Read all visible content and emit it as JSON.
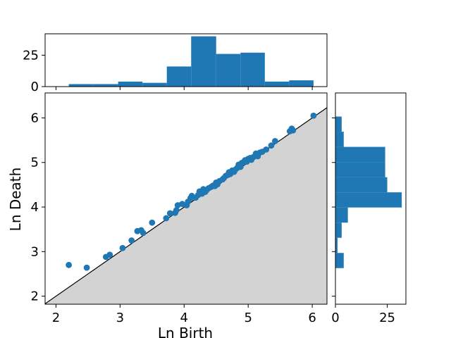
{
  "chart_data": {
    "type": "scatter",
    "title": "",
    "xlabel": "Ln Birth",
    "ylabel": "Ln Death",
    "xlim": [
      1.83,
      6.23
    ],
    "ylim": [
      1.82,
      6.56
    ],
    "xticks": [
      "2",
      "3",
      "4",
      "5",
      "6"
    ],
    "yticks": [
      "2",
      "3",
      "4",
      "5",
      "6"
    ],
    "grid": false,
    "legend": "none",
    "diagonal_line": true,
    "below_diagonal_fill": "#d3d3d3",
    "marker_color": "#1f77b4",
    "points": [
      [
        2.2,
        2.7
      ],
      [
        2.48,
        2.64
      ],
      [
        2.78,
        2.88
      ],
      [
        2.84,
        2.93
      ],
      [
        3.04,
        3.08
      ],
      [
        3.18,
        3.25
      ],
      [
        3.27,
        3.46
      ],
      [
        3.33,
        3.48
      ],
      [
        3.36,
        3.42
      ],
      [
        3.5,
        3.65
      ],
      [
        3.72,
        3.75
      ],
      [
        3.78,
        3.86
      ],
      [
        3.86,
        3.87
      ],
      [
        3.88,
        3.93
      ],
      [
        3.9,
        4.04
      ],
      [
        3.97,
        4.07
      ],
      [
        4.04,
        4.04
      ],
      [
        4.06,
        4.12
      ],
      [
        4.1,
        4.2
      ],
      [
        4.12,
        4.25
      ],
      [
        4.18,
        4.21
      ],
      [
        4.22,
        4.27
      ],
      [
        4.24,
        4.35
      ],
      [
        4.28,
        4.3
      ],
      [
        4.3,
        4.4
      ],
      [
        4.33,
        4.34
      ],
      [
        4.35,
        4.38
      ],
      [
        4.38,
        4.42
      ],
      [
        4.42,
        4.45
      ],
      [
        4.45,
        4.48
      ],
      [
        4.48,
        4.47
      ],
      [
        4.5,
        4.55
      ],
      [
        4.52,
        4.51
      ],
      [
        4.55,
        4.58
      ],
      [
        4.6,
        4.62
      ],
      [
        4.62,
        4.65
      ],
      [
        4.65,
        4.7
      ],
      [
        4.68,
        4.72
      ],
      [
        4.7,
        4.78
      ],
      [
        4.72,
        4.74
      ],
      [
        4.75,
        4.82
      ],
      [
        4.78,
        4.79
      ],
      [
        4.8,
        4.84
      ],
      [
        4.83,
        4.88
      ],
      [
        4.85,
        4.95
      ],
      [
        4.88,
        4.9
      ],
      [
        4.9,
        4.99
      ],
      [
        4.92,
        5.0
      ],
      [
        4.95,
        5.05
      ],
      [
        4.98,
        5.02
      ],
      [
        5.0,
        5.08
      ],
      [
        5.03,
        5.1
      ],
      [
        5.05,
        5.06
      ],
      [
        5.08,
        5.12
      ],
      [
        5.12,
        5.2
      ],
      [
        5.15,
        5.14
      ],
      [
        5.18,
        5.22
      ],
      [
        5.22,
        5.24
      ],
      [
        5.28,
        5.29
      ],
      [
        5.36,
        5.38
      ],
      [
        5.42,
        5.48
      ],
      [
        5.65,
        5.7
      ],
      [
        5.68,
        5.76
      ],
      [
        5.7,
        5.72
      ],
      [
        6.02,
        6.05
      ]
    ],
    "top_histogram": {
      "ylim": [
        0,
        42
      ],
      "yticks": [
        "0",
        "25"
      ],
      "bins": [
        {
          "range": [
            2.2,
            2.58
          ],
          "count": 2
        },
        {
          "range": [
            2.58,
            2.97
          ],
          "count": 2
        },
        {
          "range": [
            2.97,
            3.35
          ],
          "count": 4
        },
        {
          "range": [
            3.35,
            3.73
          ],
          "count": 3
        },
        {
          "range": [
            3.73,
            4.11
          ],
          "count": 16
        },
        {
          "range": [
            4.11,
            4.5
          ],
          "count": 40
        },
        {
          "range": [
            4.5,
            4.88
          ],
          "count": 26
        },
        {
          "range": [
            4.88,
            5.26
          ],
          "count": 27
        },
        {
          "range": [
            5.26,
            5.64
          ],
          "count": 4
        },
        {
          "range": [
            5.64,
            6.02
          ],
          "count": 5
        }
      ]
    },
    "right_histogram": {
      "xlim": [
        0,
        34
      ],
      "xticks": [
        "0",
        "25"
      ],
      "bins": [
        {
          "range": [
            2.63,
            2.97
          ],
          "count": 4
        },
        {
          "range": [
            2.97,
            3.31
          ],
          "count": 1
        },
        {
          "range": [
            3.31,
            3.65
          ],
          "count": 3
        },
        {
          "range": [
            3.65,
            3.99
          ],
          "count": 6
        },
        {
          "range": [
            3.99,
            4.33
          ],
          "count": 32
        },
        {
          "range": [
            4.33,
            4.67
          ],
          "count": 25
        },
        {
          "range": [
            4.67,
            5.01
          ],
          "count": 24
        },
        {
          "range": [
            5.01,
            5.35
          ],
          "count": 24
        },
        {
          "range": [
            5.35,
            5.69
          ],
          "count": 4
        },
        {
          "range": [
            5.69,
            6.03
          ],
          "count": 3
        }
      ]
    }
  }
}
